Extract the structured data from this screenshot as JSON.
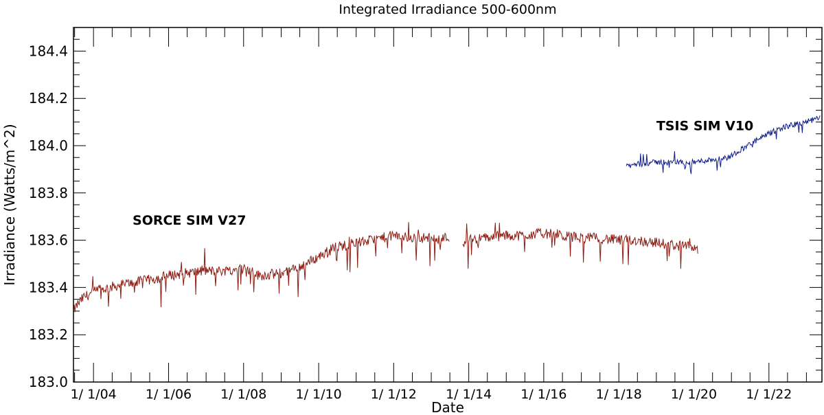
{
  "chart_data": {
    "type": "line",
    "title": "Integrated Irradiance 500-600nm",
    "xlabel": "Date",
    "ylabel": "Irradiance (Watts/m^2)",
    "xlim": [
      "2003-06-20",
      "2023-06-01"
    ],
    "ylim": [
      183.0,
      184.5
    ],
    "x_ticks": [
      {
        "date": "2004-01-01",
        "label": "1/ 1/04"
      },
      {
        "date": "2006-01-01",
        "label": "1/ 1/06"
      },
      {
        "date": "2008-01-01",
        "label": "1/ 1/08"
      },
      {
        "date": "2010-01-01",
        "label": "1/ 1/10"
      },
      {
        "date": "2012-01-01",
        "label": "1/ 1/12"
      },
      {
        "date": "2014-01-01",
        "label": "1/ 1/14"
      },
      {
        "date": "2016-01-01",
        "label": "1/ 1/16"
      },
      {
        "date": "2018-01-01",
        "label": "1/ 1/18"
      },
      {
        "date": "2020-01-01",
        "label": "1/ 1/20"
      },
      {
        "date": "2022-01-01",
        "label": "1/ 1/22"
      }
    ],
    "y_ticks": [
      {
        "value": 183.0,
        "label": "183.0"
      },
      {
        "value": 183.2,
        "label": "183.2"
      },
      {
        "value": 183.4,
        "label": "183.4"
      },
      {
        "value": 183.6,
        "label": "183.6"
      },
      {
        "value": 183.8,
        "label": "183.8"
      },
      {
        "value": 184.0,
        "label": "184.0"
      },
      {
        "value": 184.2,
        "label": "184.2"
      },
      {
        "value": 184.4,
        "label": "184.4"
      }
    ],
    "series": [
      {
        "name": "SORCE SIM V27",
        "color": "#8b1a10",
        "label_anchor": [
          "2005-01-15",
          183.665
        ],
        "x": [
          "2003-06-20",
          "2003-08-01",
          "2003-10-01",
          "2004-01-01",
          "2004-06-01",
          "2005-01-01",
          "2005-06-01",
          "2006-01-01",
          "2006-06-01",
          "2007-01-01",
          "2007-06-01",
          "2008-01-01",
          "2008-03-01",
          "2008-06-01",
          "2009-01-01",
          "2009-06-01",
          "2010-01-01",
          "2010-06-01",
          "2011-01-01",
          "2011-06-01",
          "2012-01-01",
          "2012-06-01",
          "2013-01-01",
          "2013-07-01",
          "2013-09-15",
          "2013-11-01",
          "2014-01-01",
          "2014-06-01",
          "2015-01-01",
          "2015-06-01",
          "2016-01-01",
          "2016-06-01",
          "2017-01-01",
          "2017-06-01",
          "2018-01-01",
          "2018-06-01",
          "2019-01-01",
          "2019-06-01",
          "2020-01-01",
          "2020-02-15"
        ],
        "y": [
          183.3,
          183.33,
          183.36,
          183.38,
          183.4,
          183.42,
          183.43,
          183.45,
          183.46,
          183.47,
          183.47,
          183.48,
          183.47,
          183.45,
          183.46,
          183.48,
          183.53,
          183.57,
          183.59,
          183.6,
          183.62,
          183.61,
          183.61,
          183.61,
          null,
          183.59,
          183.6,
          183.61,
          183.62,
          183.62,
          183.63,
          183.62,
          183.61,
          183.61,
          183.6,
          183.6,
          183.59,
          183.58,
          183.57,
          183.56
        ]
      },
      {
        "name": "TSIS SIM V10",
        "color": "#0d1a8c",
        "label_anchor": [
          "2019-01-01",
          184.065
        ],
        "x": [
          "2018-03-15",
          "2018-06-01",
          "2019-01-01",
          "2019-06-01",
          "2020-01-01",
          "2020-06-01",
          "2020-12-01",
          "2021-06-01",
          "2022-01-01",
          "2022-06-01",
          "2023-01-01",
          "2023-05-20"
        ],
        "y": [
          183.91,
          183.92,
          183.93,
          183.93,
          183.93,
          183.94,
          183.95,
          184.0,
          184.05,
          184.08,
          184.1,
          184.12
        ]
      }
    ]
  }
}
